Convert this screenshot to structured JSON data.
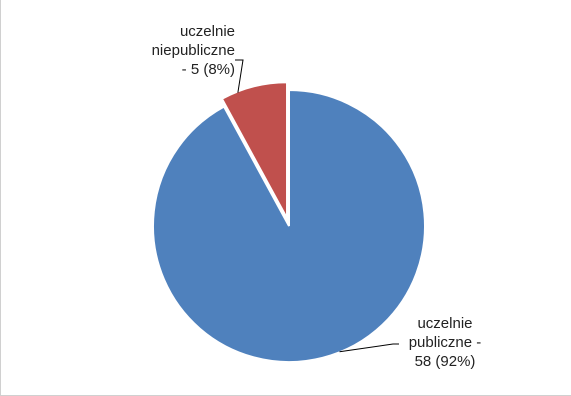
{
  "chart_data": {
    "type": "pie",
    "title": "",
    "slices": [
      {
        "category": "uczelnie publiczne",
        "value": 58,
        "percent": 92,
        "color": "#4f81bd",
        "label_lines": [
          "uczelnie",
          "publiczne -",
          "58 (92%)"
        ]
      },
      {
        "category": "uczelnie niepubliczne",
        "value": 5,
        "percent": 8,
        "color": "#c0504d",
        "label_lines": [
          "uczelnie",
          "niepubliczne",
          "- 5 (8%)"
        ]
      }
    ],
    "legend": false,
    "exploded_slice": "uczelnie niepubliczne"
  }
}
